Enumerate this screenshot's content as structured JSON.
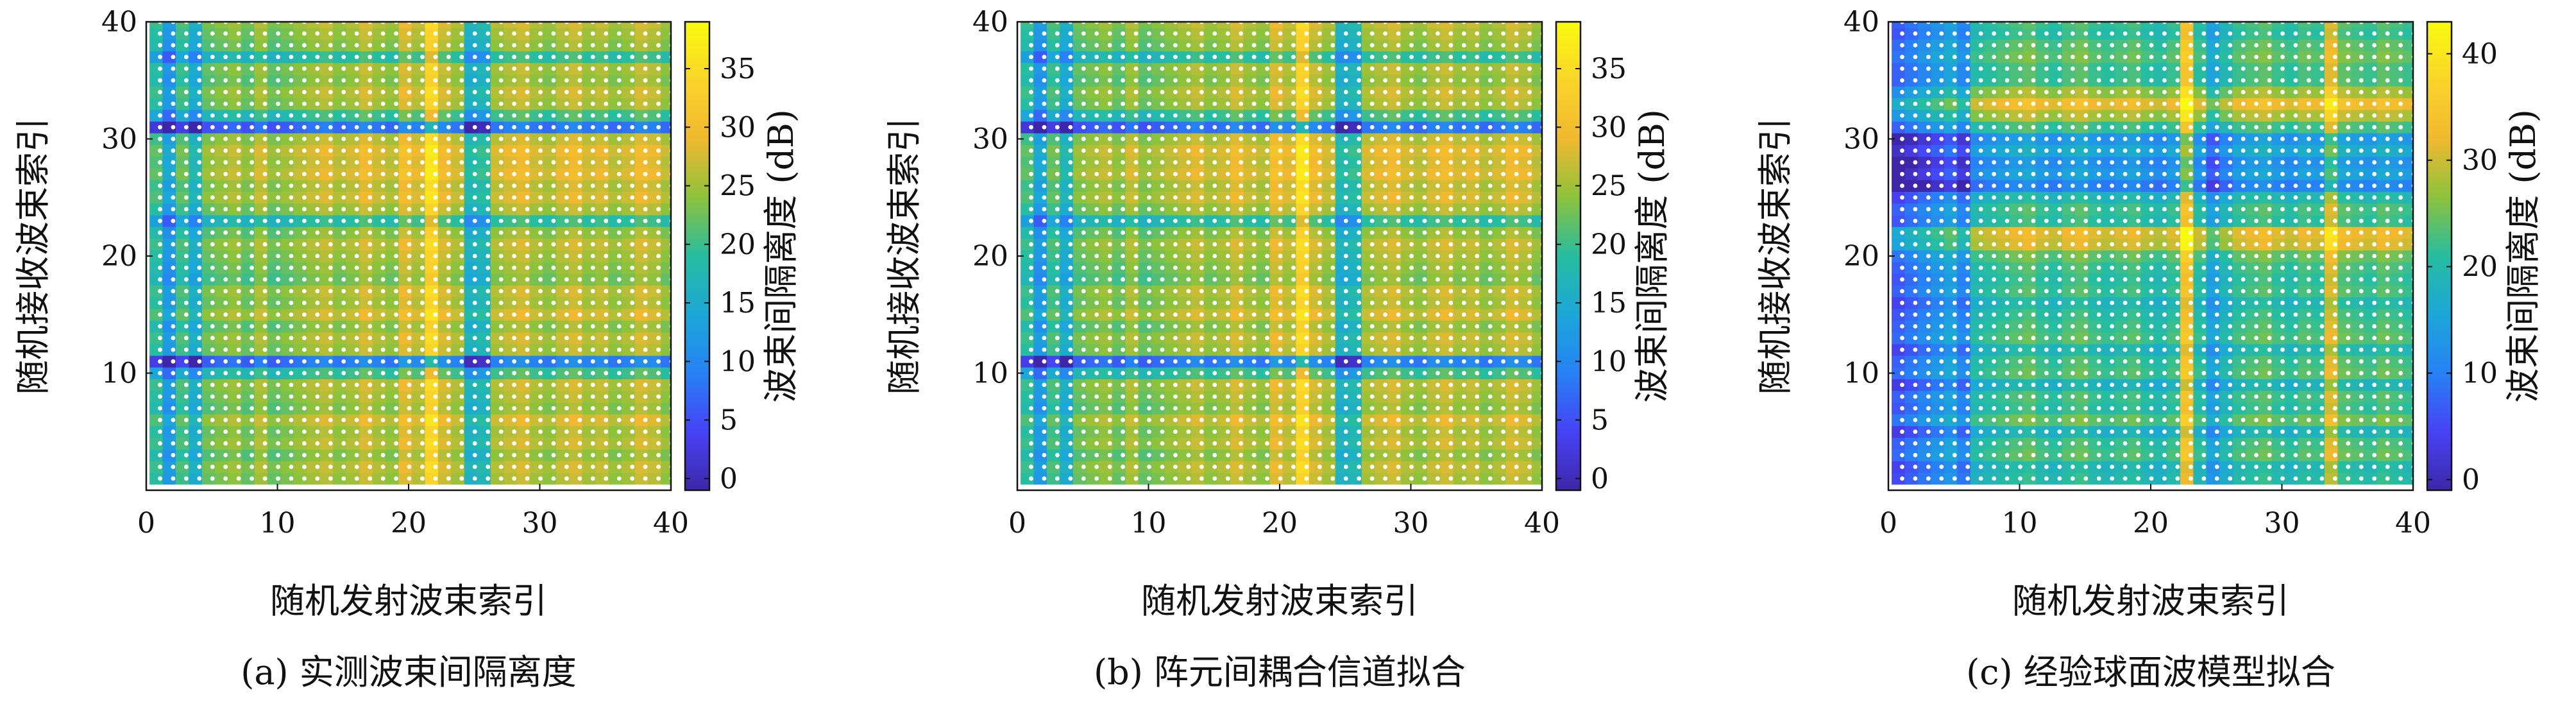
{
  "chart_data": [
    {
      "type": "heatmap",
      "caption": "(a) 实测波束间隔离度",
      "xlabel": "随机发射波束索引",
      "ylabel": "随机接收波束索引",
      "colorbar_label": "波束间隔离度 (dB)",
      "xlim": [
        0,
        40
      ],
      "ylim": [
        0,
        40
      ],
      "xticks": [
        "0",
        "10",
        "20",
        "30",
        "40"
      ],
      "yticks": [
        "10",
        "20",
        "30",
        "40"
      ],
      "clim": [
        -1,
        39
      ],
      "cbar_ticks": [
        "0",
        "5",
        "10",
        "15",
        "20",
        "25",
        "30",
        "35"
      ],
      "grid_size": [
        40,
        40
      ],
      "x_indices": [
        1,
        40
      ],
      "y_indices": [
        1,
        40
      ],
      "row_offsets": [
        1,
        2,
        0,
        2,
        1,
        3,
        0,
        1,
        2,
        -4,
        -15,
        1,
        2,
        0,
        3,
        1,
        2,
        -1,
        0,
        1,
        2,
        0,
        -5,
        1,
        3,
        2,
        4,
        3,
        4,
        2,
        -16,
        -4,
        1,
        2,
        0,
        1,
        -5,
        0,
        1,
        2
      ],
      "col_offsets": [
        -2,
        -9,
        -1,
        -6,
        1,
        2,
        3,
        1,
        4,
        1,
        2,
        3,
        4,
        5,
        3,
        4,
        6,
        4,
        3,
        7,
        5,
        13,
        6,
        4,
        -5,
        -4,
        4,
        5,
        6,
        4,
        3,
        5,
        6,
        4,
        5,
        3,
        4,
        6,
        5,
        3
      ],
      "base_level": 20,
      "white_dots": "all cells",
      "colormap": [
        "#3e26a8",
        "#4743f6",
        "#2781f6",
        "#1ba7d8",
        "#26bda0",
        "#8dc23c",
        "#f0b92f",
        "#fad42a",
        "#f9fb0e"
      ],
      "dot_color": "#ffffff"
    },
    {
      "type": "heatmap",
      "caption": "(b) 阵元间耦合信道拟合",
      "xlabel": "随机发射波束索引",
      "ylabel": "随机接收波束索引",
      "colorbar_label": "波束间隔离度 (dB)",
      "xlim": [
        0,
        40
      ],
      "ylim": [
        0,
        40
      ],
      "xticks": [
        "0",
        "10",
        "20",
        "30",
        "40"
      ],
      "yticks": [
        "10",
        "20",
        "30",
        "40"
      ],
      "clim": [
        -1,
        39
      ],
      "cbar_ticks": [
        "0",
        "5",
        "10",
        "15",
        "20",
        "25",
        "30",
        "35"
      ],
      "grid_size": [
        40,
        40
      ],
      "x_indices": [
        1,
        40
      ],
      "y_indices": [
        1,
        40
      ],
      "row_offsets": [
        1,
        2,
        0,
        2,
        1,
        3,
        0,
        1,
        2,
        -4,
        -15,
        1,
        2,
        0,
        3,
        1,
        2,
        -1,
        0,
        1,
        2,
        0,
        -5,
        1,
        3,
        2,
        4,
        3,
        4,
        2,
        -16,
        -4,
        1,
        2,
        0,
        1,
        -5,
        0,
        1,
        2
      ],
      "col_offsets": [
        -2,
        -9,
        -1,
        -6,
        1,
        2,
        3,
        1,
        4,
        1,
        2,
        3,
        4,
        5,
        3,
        4,
        6,
        4,
        3,
        7,
        5,
        13,
        6,
        4,
        -5,
        -4,
        4,
        5,
        6,
        4,
        3,
        5,
        6,
        4,
        5,
        3,
        4,
        6,
        5,
        3
      ],
      "base_level": 20,
      "white_dots": "all cells",
      "colormap": [
        "#3e26a8",
        "#4743f6",
        "#2781f6",
        "#1ba7d8",
        "#26bda0",
        "#8dc23c",
        "#f0b92f",
        "#fad42a",
        "#f9fb0e"
      ],
      "dot_color": "#ffffff"
    },
    {
      "type": "heatmap",
      "caption": "(c) 经验球面波模型拟合",
      "xlabel": "随机发射波束索引",
      "ylabel": "随机接收波束索引",
      "colorbar_label": "波束间隔离度 (dB)",
      "xlim": [
        0,
        40
      ],
      "ylim": [
        0,
        40
      ],
      "xticks": [
        "0",
        "10",
        "20",
        "30",
        "40"
      ],
      "yticks": [
        "10",
        "20",
        "30",
        "40"
      ],
      "clim": [
        -1,
        43
      ],
      "cbar_ticks": [
        "0",
        "10",
        "20",
        "30",
        "40"
      ],
      "grid_size": [
        40,
        40
      ],
      "x_indices": [
        1,
        40
      ],
      "y_indices": [
        1,
        40
      ],
      "row_offsets": [
        -2,
        -3,
        1,
        0,
        -4,
        2,
        -1,
        0,
        -4,
        1,
        0,
        -3,
        1,
        0,
        -1,
        -3,
        0,
        -1,
        0,
        2,
        8,
        9,
        -1,
        0,
        -3,
        -12,
        -8,
        -10,
        -6,
        -9,
        0,
        6,
        10,
        5,
        0,
        0,
        2,
        1,
        -1,
        0
      ],
      "col_offsets": [
        -14,
        -12,
        -10,
        -8,
        -6,
        -10,
        -1,
        0,
        1,
        2,
        3,
        1,
        0,
        2,
        3,
        1,
        0,
        1,
        2,
        0,
        -1,
        1,
        13,
        0,
        -6,
        -2,
        1,
        2,
        3,
        1,
        0,
        2,
        1,
        10,
        3,
        2,
        1,
        3,
        2,
        1
      ],
      "base_level": 21,
      "white_dots": "all cells",
      "colormap": [
        "#3e26a8",
        "#4743f6",
        "#2781f6",
        "#1ba7d8",
        "#26bda0",
        "#8dc23c",
        "#f0b92f",
        "#fad42a",
        "#f9fb0e"
      ],
      "dot_color": "#ffffff"
    }
  ]
}
